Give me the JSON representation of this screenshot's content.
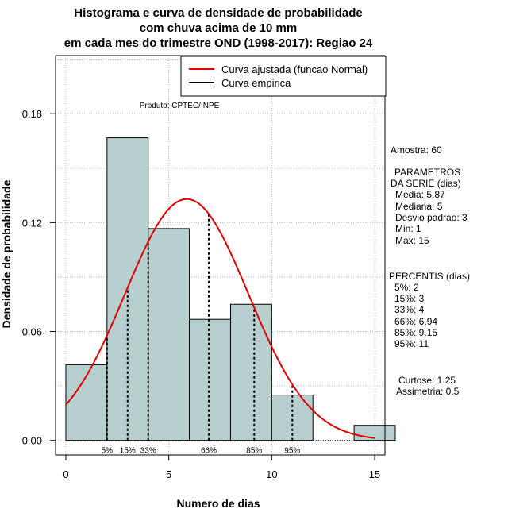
{
  "chart_data": {
    "type": "bar",
    "title_lines": [
      "Histograma e curva de densidade de probabilidade",
      "com chuva acima de 10 mm",
      "em cada mes do trimestre OND (1998-2017): Regiao 24"
    ],
    "xlabel": "Numero de dias",
    "ylabel": "Densidade de probabilidade",
    "xlim": [
      -0.5,
      15.5
    ],
    "ylim": [
      -0.008,
      0.212
    ],
    "xticks": [
      0,
      5,
      10,
      15
    ],
    "yticks": [
      0.0,
      0.06,
      0.12,
      0.18
    ],
    "ytick_labels": [
      "0.00",
      "0.06",
      "0.12",
      "0.18"
    ],
    "bins": [
      {
        "start": 0,
        "end": 2,
        "density": 0.0417
      },
      {
        "start": 2,
        "end": 4,
        "density": 0.1667
      },
      {
        "start": 4,
        "end": 6,
        "density": 0.1167
      },
      {
        "start": 6,
        "end": 8,
        "density": 0.0667
      },
      {
        "start": 8,
        "end": 10,
        "density": 0.075
      },
      {
        "start": 10,
        "end": 12,
        "density": 0.025
      },
      {
        "start": 12,
        "end": 14,
        "density": 0.0
      },
      {
        "start": 14,
        "end": 16,
        "density": 0.0083
      }
    ],
    "normal_fit": {
      "mean": 5.87,
      "sd": 3,
      "x_range": [
        0,
        15
      ]
    },
    "percentile_lines": [
      {
        "label": "5%",
        "value": 2
      },
      {
        "label": "15%",
        "value": 3
      },
      {
        "label": "33%",
        "value": 4
      },
      {
        "label": "66%",
        "value": 6.94
      },
      {
        "label": "85%",
        "value": 9.15
      },
      {
        "label": "95%",
        "value": 11
      }
    ],
    "legend": [
      {
        "label": "Curva ajustada (funcao Normal)",
        "color": "#e00000"
      },
      {
        "label": "Curva empirica",
        "color": "#000000"
      }
    ],
    "legend_position": "top-right",
    "product_label": "Produto: CPTEC/INPE",
    "grid": true,
    "colors": {
      "bar_fill": "#b7cfcf",
      "curve": "#e00000",
      "grid": "#bbbbbb"
    }
  },
  "side_panel": {
    "lines": [
      "Amostra: 60",
      "PARAMETROS",
      "DA SERIE (dias)",
      "Media: 5.87",
      "Mediana: 5",
      "Desvio padrao: 3",
      "Min: 1",
      "Max: 15",
      "PERCENTIS (dias)",
      "5%: 2",
      "15%: 3",
      "33%: 4",
      "66%: 6.94",
      "85%: 9.15",
      "95%: 11",
      "Curtose: 1.25",
      "Assimetria: 0.5"
    ]
  }
}
